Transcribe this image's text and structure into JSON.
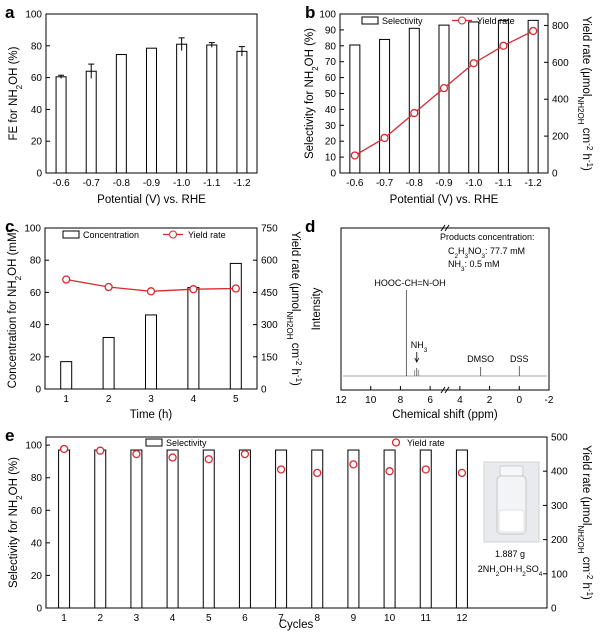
{
  "chart_data": [
    {
      "panel": "a",
      "type": "bar",
      "xlabel": "Potential (V) vs. RHE",
      "ylabel": "FE for NH2OH (%)",
      "ylim": [
        0,
        100
      ],
      "yticks": [
        0,
        20,
        40,
        60,
        80,
        100
      ],
      "categories": [
        "-0.6",
        "-0.7",
        "-0.8",
        "-0.9",
        "-1.0",
        "-1.1",
        "-1.2"
      ],
      "values": [
        60.5,
        64,
        74.5,
        78.5,
        81,
        80.5,
        76.5
      ],
      "errors": [
        1,
        4.5,
        0,
        0,
        4,
        1.5,
        3
      ]
    },
    {
      "panel": "b",
      "type": "bar+line",
      "xlabel": "Potential (V) vs. RHE",
      "ylabel": "Selectivity for NH2OH (%)",
      "y2label": "Yield rate (μmol NH2OH cm-2 h-1)",
      "ylim": [
        0,
        100
      ],
      "yticks": [
        0,
        10,
        20,
        30,
        40,
        50,
        60,
        70,
        80,
        90,
        100
      ],
      "y2lim": [
        0,
        862
      ],
      "y2ticks": [
        0,
        200,
        400,
        600,
        800
      ],
      "legend": [
        "Selectivity",
        "Yield rate"
      ],
      "categories": [
        "-0.6",
        "-0.7",
        "-0.8",
        "-0.9",
        "-1.0",
        "-1.1",
        "-1.2"
      ],
      "series": [
        {
          "name": "Selectivity",
          "type": "bar",
          "values": [
            80.5,
            84,
            91,
            93,
            95,
            96,
            96
          ]
        },
        {
          "name": "Yield rate",
          "type": "line",
          "values": [
            95,
            190,
            325,
            460,
            595,
            690,
            770
          ]
        }
      ]
    },
    {
      "panel": "c",
      "type": "bar+line",
      "xlabel": "Time (h)",
      "ylabel": "Concentration for NH2OH (mM)",
      "y2label": "Yield rate (μmol NH2OH cm-2 h-1)",
      "ylim": [
        0,
        100
      ],
      "yticks": [
        0,
        20,
        40,
        60,
        80,
        100
      ],
      "y2lim": [
        0,
        750
      ],
      "y2ticks": [
        0,
        150,
        300,
        450,
        600,
        750
      ],
      "legend": [
        "Concentration",
        "Yield rate"
      ],
      "categories": [
        "1",
        "2",
        "3",
        "4",
        "5"
      ],
      "series": [
        {
          "name": "Concentration",
          "type": "bar",
          "values": [
            17,
            32,
            46,
            63,
            78
          ]
        },
        {
          "name": "Yield rate",
          "type": "line",
          "values": [
            510,
            475,
            455,
            465,
            468
          ]
        }
      ]
    },
    {
      "panel": "d",
      "type": "line",
      "xlabel": "Chemical shift (ppm)",
      "ylabel": "Intensity",
      "xticks": [
        "12",
        "10",
        "8",
        "6",
        "4",
        "2",
        "0",
        "-2"
      ],
      "peaks": [
        {
          "ppm": 7.6,
          "label": "HOOC-CH=N-OH"
        },
        {
          "ppm": 6.9,
          "label": "NH3"
        },
        {
          "ppm": 2.6,
          "label": "DMSO"
        },
        {
          "ppm": 0.0,
          "label": "DSS"
        }
      ],
      "annotation": {
        "title": "Products concentration:",
        "line1": "C2H3NO3: 77.7 mM",
        "line2": "NH3: 0.5 mM"
      }
    },
    {
      "panel": "e",
      "type": "bar+scatter",
      "xlabel": "Cycles",
      "ylabel": "Selectivity for NH2OH (%)",
      "y2label": "Yield rate (μmol NH2OH cm-2 h-1)",
      "ylim": [
        0,
        105
      ],
      "yticks": [
        0,
        20,
        40,
        60,
        80,
        100
      ],
      "y2lim": [
        0,
        500
      ],
      "y2ticks": [
        0,
        100,
        200,
        300,
        400,
        500
      ],
      "legend": [
        "Selectivity",
        "Yield rate"
      ],
      "categories": [
        "1",
        "2",
        "3",
        "4",
        "5",
        "6",
        "7",
        "8",
        "9",
        "10",
        "11",
        "12"
      ],
      "series": [
        {
          "name": "Selectivity",
          "type": "bar",
          "values": [
            97,
            97,
            97,
            97,
            97,
            97,
            97,
            97,
            97,
            97,
            97,
            97
          ]
        },
        {
          "name": "Yield rate",
          "type": "scatter",
          "values": [
            465,
            460,
            450,
            440,
            435,
            450,
            405,
            395,
            420,
            400,
            405,
            395
          ]
        }
      ],
      "inset": {
        "mass": "1.887 g",
        "compound": "2NH2OH·H2SO4"
      }
    }
  ],
  "colors": {
    "line": "#d9282e",
    "axis": "#000000"
  }
}
